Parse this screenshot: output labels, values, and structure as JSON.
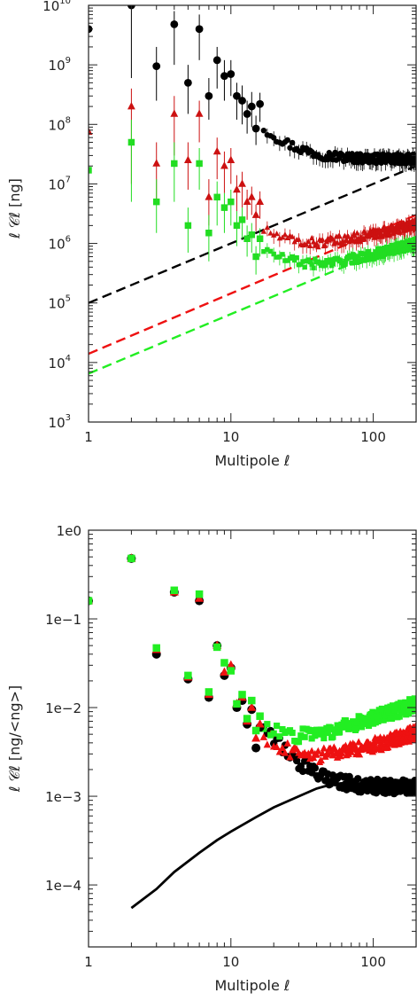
{
  "chart_data": [
    {
      "type": "scatter",
      "xscale": "log",
      "yscale": "log",
      "xlim": [
        1,
        200
      ],
      "ylim": [
        1000,
        10000000000
      ],
      "grid": false,
      "title": "",
      "xlabel": "Multipole ℓ",
      "ylabel": "ℓ 𝒞ℓ [ng]",
      "x_ticks": [
        {
          "value": 1,
          "label": "1"
        },
        {
          "value": 10,
          "label": "10"
        },
        {
          "value": 100,
          "label": "100"
        }
      ],
      "y_ticks": [
        {
          "value": 1000,
          "base": "10",
          "exp": "3"
        },
        {
          "value": 10000,
          "base": "10",
          "exp": "4"
        },
        {
          "value": 100000,
          "base": "10",
          "exp": "5"
        },
        {
          "value": 1000000,
          "base": "10",
          "exp": "6"
        },
        {
          "value": 10000000,
          "base": "10",
          "exp": "7"
        },
        {
          "value": 100000000,
          "base": "10",
          "exp": "8"
        },
        {
          "value": 1000000000,
          "base": "10",
          "exp": "9"
        },
        {
          "value": 10000000000,
          "base": "10",
          "exp": "10"
        }
      ],
      "series": [
        {
          "color": "#000000",
          "marker": "circle",
          "trend": {
            "start": 3500000000.0,
            "amp_decay_l": 25,
            "plateau": 26000000.0,
            "rise": 0
          },
          "points": [
            {
              "x": 1,
              "y": 4000000000.0,
              "lo": 4000000000.0,
              "hi": 4000000000.0
            },
            {
              "x": 2,
              "y": 10000000000.0,
              "lo": 600000000.0,
              "hi": 10000000000.0
            },
            {
              "x": 3,
              "y": 950000000.0,
              "lo": 250000000.0,
              "hi": 2000000000.0
            },
            {
              "x": 4,
              "y": 4800000000.0,
              "lo": 1000000000.0,
              "hi": 8000000000.0
            },
            {
              "x": 5,
              "y": 500000000.0,
              "lo": 150000000.0,
              "hi": 1000000000.0
            },
            {
              "x": 6,
              "y": 4000000000.0,
              "lo": 1200000000.0,
              "hi": 7000000000.0
            },
            {
              "x": 7,
              "y": 300000000.0,
              "lo": 120000000.0,
              "hi": 600000000.0
            },
            {
              "x": 8,
              "y": 1200000000.0,
              "lo": 400000000.0,
              "hi": 2000000000.0
            },
            {
              "x": 9,
              "y": 650000000.0,
              "lo": 250000000.0,
              "hi": 1200000000.0
            },
            {
              "x": 10,
              "y": 700000000.0,
              "lo": 300000000.0,
              "hi": 1200000000.0
            },
            {
              "x": 11,
              "y": 300000000.0,
              "lo": 120000000.0,
              "hi": 500000000.0
            },
            {
              "x": 12,
              "y": 250000000.0,
              "lo": 100000000.0,
              "hi": 450000000.0
            },
            {
              "x": 13,
              "y": 150000000.0,
              "lo": 70000000.0,
              "hi": 250000000.0
            },
            {
              "x": 14,
              "y": 200000000.0,
              "lo": 90000000.0,
              "hi": 350000000.0
            },
            {
              "x": 15,
              "y": 85000000.0,
              "lo": 45000000.0,
              "hi": 140000000.0
            },
            {
              "x": 16,
              "y": 220000000.0,
              "lo": 110000000.0,
              "hi": 340000000.0
            }
          ]
        },
        {
          "color": "#cc1111",
          "marker": "triangle",
          "trend": {
            "start": 120000000.0,
            "amp_decay_l": 18,
            "plateau": 800000.0,
            "rise": 0.6
          },
          "points": [
            {
              "x": 1,
              "y": 75000000.0,
              "lo": 75000000.0,
              "hi": 75000000.0
            },
            {
              "x": 2,
              "y": 200000000.0,
              "lo": 10000000.0,
              "hi": 400000000.0
            },
            {
              "x": 3,
              "y": 22000000.0,
              "lo": 5000000.0,
              "hi": 50000000.0
            },
            {
              "x": 4,
              "y": 150000000.0,
              "lo": 30000000.0,
              "hi": 300000000.0
            },
            {
              "x": 5,
              "y": 25000000.0,
              "lo": 8000000.0,
              "hi": 50000000.0
            },
            {
              "x": 6,
              "y": 150000000.0,
              "lo": 50000000.0,
              "hi": 250000000.0
            },
            {
              "x": 7,
              "y": 6000000.0,
              "lo": 2000000.0,
              "hi": 12000000.0
            },
            {
              "x": 8,
              "y": 35000000.0,
              "lo": 12000000.0,
              "hi": 60000000.0
            },
            {
              "x": 9,
              "y": 20000000.0,
              "lo": 7000000.0,
              "hi": 35000000.0
            },
            {
              "x": 10,
              "y": 25000000.0,
              "lo": 10000000.0,
              "hi": 40000000.0
            },
            {
              "x": 11,
              "y": 8000000.0,
              "lo": 3500000.0,
              "hi": 14000000.0
            },
            {
              "x": 12,
              "y": 10000000.0,
              "lo": 4000000.0,
              "hi": 16000000.0
            },
            {
              "x": 13,
              "y": 5000000.0,
              "lo": 2500000.0,
              "hi": 8000000.0
            },
            {
              "x": 14,
              "y": 6000000.0,
              "lo": 3000000.0,
              "hi": 9000000.0
            },
            {
              "x": 15,
              "y": 3000000.0,
              "lo": 1600000.0,
              "hi": 4500000.0
            },
            {
              "x": 16,
              "y": 5000000.0,
              "lo": 2600000.0,
              "hi": 7500000.0
            }
          ]
        },
        {
          "color": "#22dd22",
          "marker": "square",
          "trend": {
            "start": 60000000.0,
            "amp_decay_l": 18,
            "plateau": 350000.0,
            "rise": 0.65
          },
          "points": [
            {
              "x": 1,
              "y": 17000000.0,
              "lo": 17000000.0,
              "hi": 17000000.0
            },
            {
              "x": 2,
              "y": 50000000.0,
              "lo": 5000000.0,
              "hi": 120000000.0
            },
            {
              "x": 3,
              "y": 5000000.0,
              "lo": 1500000.0,
              "hi": 12000000.0
            },
            {
              "x": 4,
              "y": 22000000.0,
              "lo": 5000000.0,
              "hi": 50000000.0
            },
            {
              "x": 5,
              "y": 2000000.0,
              "lo": 700000.0,
              "hi": 4000000.0
            },
            {
              "x": 6,
              "y": 22000000.0,
              "lo": 8000000.0,
              "hi": 40000000.0
            },
            {
              "x": 7,
              "y": 1500000.0,
              "lo": 500000.0,
              "hi": 3000000.0
            },
            {
              "x": 8,
              "y": 6000000.0,
              "lo": 2000000.0,
              "hi": 11000000.0
            },
            {
              "x": 9,
              "y": 4000000.0,
              "lo": 1500000.0,
              "hi": 7000000.0
            },
            {
              "x": 10,
              "y": 5000000.0,
              "lo": 2000000.0,
              "hi": 8000000.0
            },
            {
              "x": 11,
              "y": 2000000.0,
              "lo": 900000.0,
              "hi": 3500000.0
            },
            {
              "x": 12,
              "y": 2500000.0,
              "lo": 1200000.0,
              "hi": 4000000.0
            },
            {
              "x": 13,
              "y": 1200000.0,
              "lo": 600000.0,
              "hi": 2000000.0
            },
            {
              "x": 14,
              "y": 1400000.0,
              "lo": 700000.0,
              "hi": 2200000.0
            },
            {
              "x": 15,
              "y": 600000.0,
              "lo": 300000.0,
              "hi": 900000.0
            },
            {
              "x": 16,
              "y": 1200000.0,
              "lo": 600000.0,
              "hi": 1800000.0
            }
          ]
        }
      ],
      "lines": [
        {
          "color": "#000000",
          "style": "dashed",
          "points": [
            [
              1,
              100000.0
            ],
            [
              200,
              20000000.0
            ]
          ]
        },
        {
          "color": "#ee1111",
          "style": "dashed",
          "points": [
            [
              1,
              14000.0
            ],
            [
              200,
              3000000.0
            ]
          ]
        },
        {
          "color": "#22ee22",
          "style": "dashed",
          "points": [
            [
              1,
              6500.0
            ],
            [
              200,
              1300000.0
            ]
          ]
        }
      ]
    },
    {
      "type": "scatter",
      "xscale": "log",
      "yscale": "log",
      "xlim": [
        1,
        200
      ],
      "ylim": [
        2e-05,
        1
      ],
      "grid": false,
      "title": "",
      "xlabel": "Multipole ℓ",
      "ylabel": "ℓ 𝒞ℓ [ng/<ng>]",
      "x_ticks": [
        {
          "value": 1,
          "label": "1"
        },
        {
          "value": 10,
          "label": "10"
        },
        {
          "value": 100,
          "label": "100"
        }
      ],
      "y_ticks": [
        {
          "value": 1,
          "label": "1e0"
        },
        {
          "value": 0.1,
          "label": "1e−1"
        },
        {
          "value": 0.01,
          "label": "1e−2"
        },
        {
          "value": 0.001,
          "label": "1e−3"
        },
        {
          "value": 0.0001,
          "label": "1e−4"
        }
      ],
      "series": [
        {
          "color": "#000000",
          "marker": "circle",
          "trend": {
            "start": 0.3,
            "amp_decay_l": 20,
            "plateau": 0.00125,
            "rise": 0
          },
          "points": [
            {
              "x": 1,
              "y": 0.16
            },
            {
              "x": 2,
              "y": 0.48
            },
            {
              "x": 3,
              "y": 0.04
            },
            {
              "x": 4,
              "y": 0.2
            },
            {
              "x": 5,
              "y": 0.021
            },
            {
              "x": 6,
              "y": 0.16
            },
            {
              "x": 7,
              "y": 0.013
            },
            {
              "x": 8,
              "y": 0.05
            },
            {
              "x": 9,
              "y": 0.023
            },
            {
              "x": 10,
              "y": 0.028
            },
            {
              "x": 11,
              "y": 0.01
            },
            {
              "x": 12,
              "y": 0.012
            },
            {
              "x": 13,
              "y": 0.0065
            },
            {
              "x": 14,
              "y": 0.0095
            },
            {
              "x": 15,
              "y": 0.0035
            },
            {
              "x": 16,
              "y": 0.006
            }
          ]
        },
        {
          "color": "#ee1111",
          "marker": "triangle",
          "trend": {
            "start": 0.3,
            "amp_decay_l": 20,
            "plateau": 0.0023,
            "rise": 0.5
          },
          "points": [
            {
              "x": 1,
              "y": 0.16
            },
            {
              "x": 2,
              "y": 0.48
            },
            {
              "x": 3,
              "y": 0.045
            },
            {
              "x": 4,
              "y": 0.2
            },
            {
              "x": 5,
              "y": 0.022
            },
            {
              "x": 6,
              "y": 0.17
            },
            {
              "x": 7,
              "y": 0.014
            },
            {
              "x": 8,
              "y": 0.05
            },
            {
              "x": 9,
              "y": 0.025
            },
            {
              "x": 10,
              "y": 0.03
            },
            {
              "x": 11,
              "y": 0.011
            },
            {
              "x": 12,
              "y": 0.013
            },
            {
              "x": 13,
              "y": 0.007
            },
            {
              "x": 14,
              "y": 0.01
            },
            {
              "x": 15,
              "y": 0.0045
            },
            {
              "x": 16,
              "y": 0.0065
            }
          ]
        },
        {
          "color": "#22ee22",
          "marker": "square",
          "trend": {
            "start": 0.3,
            "amp_decay_l": 20,
            "plateau": 0.0045,
            "rise": 0.55
          },
          "points": [
            {
              "x": 1,
              "y": 0.16
            },
            {
              "x": 2,
              "y": 0.48
            },
            {
              "x": 3,
              "y": 0.047
            },
            {
              "x": 4,
              "y": 0.21
            },
            {
              "x": 5,
              "y": 0.023
            },
            {
              "x": 6,
              "y": 0.19
            },
            {
              "x": 7,
              "y": 0.015
            },
            {
              "x": 8,
              "y": 0.048
            },
            {
              "x": 9,
              "y": 0.032
            },
            {
              "x": 10,
              "y": 0.026
            },
            {
              "x": 11,
              "y": 0.011
            },
            {
              "x": 12,
              "y": 0.014
            },
            {
              "x": 13,
              "y": 0.0075
            },
            {
              "x": 14,
              "y": 0.012
            },
            {
              "x": 15,
              "y": 0.0055
            },
            {
              "x": 16,
              "y": 0.008
            }
          ]
        }
      ],
      "lines": [
        {
          "color": "#000000",
          "style": "solid",
          "points": [
            [
              2,
              5.5e-05
            ],
            [
              3,
              9e-05
            ],
            [
              4,
              0.00014
            ],
            [
              6,
              0.00023
            ],
            [
              8,
              0.00032
            ],
            [
              10,
              0.0004
            ],
            [
              15,
              0.00058
            ],
            [
              20,
              0.00075
            ],
            [
              30,
              0.001
            ],
            [
              40,
              0.00122
            ],
            [
              50,
              0.00135
            ],
            [
              60,
              0.0014
            ]
          ]
        }
      ]
    }
  ]
}
